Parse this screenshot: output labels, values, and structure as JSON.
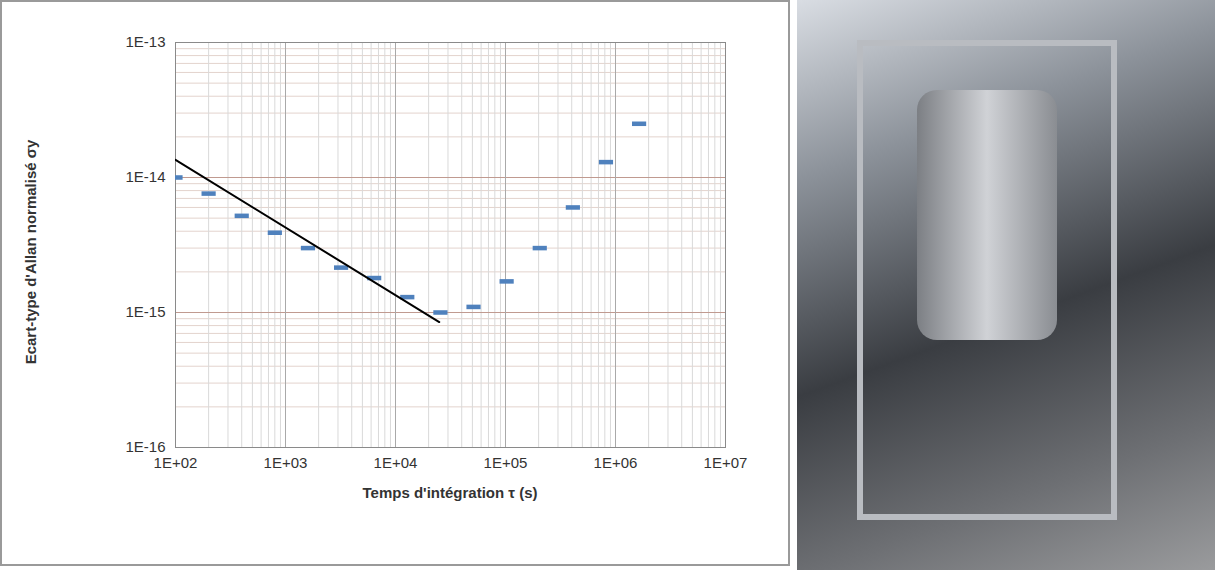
{
  "chart_data": {
    "type": "scatter",
    "x_label": "Temps d'intégration τ (s)",
    "y_label": "Ecart-type d'Allan normalisé σy",
    "log": true,
    "grid": true,
    "xlim": [
      100,
      10000000
    ],
    "ylim": [
      1e-16,
      1e-13
    ],
    "xticks": [
      {
        "value": 100,
        "label": "1E+02"
      },
      {
        "value": 1000,
        "label": "1E+03"
      },
      {
        "value": 10000,
        "label": "1E+04"
      },
      {
        "value": 100000,
        "label": "1E+05"
      },
      {
        "value": 1000000,
        "label": "1E+06"
      },
      {
        "value": 10000000,
        "label": "1E+07"
      }
    ],
    "yticks": [
      {
        "value": 1e-16,
        "label": "1E-16"
      },
      {
        "value": 1e-15,
        "label": "1E-15"
      },
      {
        "value": 1e-14,
        "label": "1E-14"
      },
      {
        "value": 1e-13,
        "label": "1E-13"
      }
    ],
    "series": [
      {
        "type": "scatter",
        "color": "#4f81bd",
        "marker": "dash",
        "x": [
          100,
          200,
          400,
          800,
          1600,
          3200,
          6400,
          12800,
          25600,
          51200,
          102400,
          204800,
          409600,
          819200,
          1638400
        ],
        "values": [
          1e-14,
          7.6e-15,
          5.2e-15,
          3.9e-15,
          3e-15,
          2.15e-15,
          1.8e-15,
          1.3e-15,
          1e-15,
          1.1e-15,
          1.7e-15,
          3e-15,
          6e-15,
          1.3e-14,
          2.5e-14
        ]
      },
      {
        "type": "line",
        "color": "#000000",
        "line_style": "solid",
        "x": [
          100,
          25000
        ],
        "values": [
          1.35e-14,
          8.5e-16
        ]
      }
    ]
  }
}
